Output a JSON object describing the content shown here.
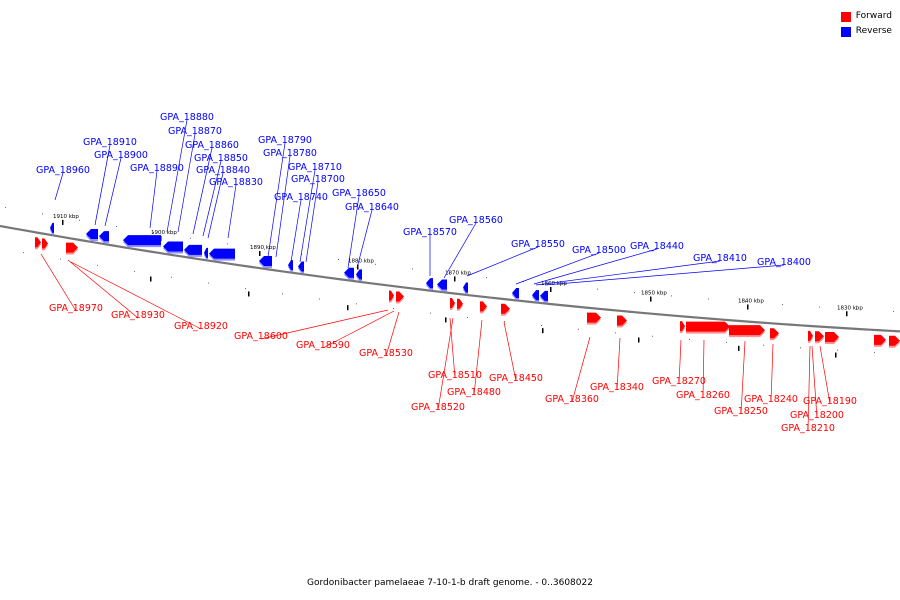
{
  "legend": {
    "forward": {
      "label": "Forward",
      "color": "#ff0000"
    },
    "reverse": {
      "label": "Reverse",
      "color": "#0000ff"
    }
  },
  "caption": "Gordonibacter pamelaeae 7-10-1-b draft genome. - 0..3608022",
  "ticks": [
    "1910 kbp",
    "1900 kbp",
    "1890 kbp",
    "1880 kbp",
    "1870 kbp",
    "1860 kbp",
    "1850 kbp",
    "1840 kbp",
    "1830 kbp"
  ],
  "reverse_genes": [
    "GPA_18960",
    "GPA_18910",
    "GPA_18900",
    "GPA_18890",
    "GPA_18880",
    "GPA_18870",
    "GPA_18860",
    "GPA_18850",
    "GPA_18840",
    "GPA_18830",
    "GPA_18790",
    "GPA_18780",
    "GPA_18740",
    "GPA_18710",
    "GPA_18700",
    "GPA_18650",
    "GPA_18640",
    "GPA_18570",
    "GPA_18560",
    "GPA_18550",
    "GPA_18500",
    "GPA_18440",
    "GPA_18410",
    "GPA_18400"
  ],
  "forward_genes": [
    "GPA_18970",
    "GPA_18930",
    "GPA_18920",
    "GPA_18600",
    "GPA_18590",
    "GPA_18530",
    "GPA_18510",
    "GPA_18520",
    "GPA_18480",
    "GPA_18450",
    "GPA_18360",
    "GPA_18340",
    "GPA_18270",
    "GPA_18260",
    "GPA_18250",
    "GPA_18240",
    "GPA_18190",
    "GPA_18200",
    "GPA_18210"
  ]
}
